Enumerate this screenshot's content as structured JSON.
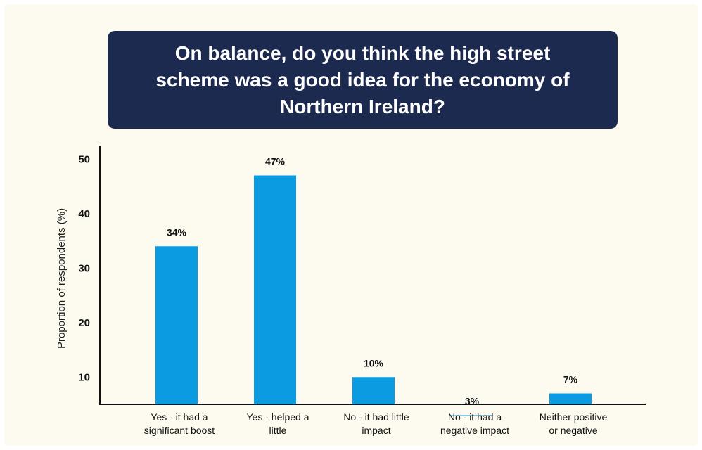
{
  "colors": {
    "background": "#fdfbef",
    "title_box": "#1d2a4f",
    "bar": "#0a9be0"
  },
  "chart_data": {
    "type": "bar",
    "title": "On balance, do you think the high street scheme was a good idea for the economy of Northern Ireland?",
    "xlabel": "",
    "ylabel": "Proportion of respondents (%)",
    "ylim": [
      5,
      52
    ],
    "yticks": [
      10,
      20,
      30,
      40,
      50
    ],
    "grid": false,
    "categories": [
      [
        "Yes - it had a",
        "significant boost"
      ],
      [
        "Yes - helped a",
        "little"
      ],
      [
        "No - it had little",
        "impact"
      ],
      [
        "No - it had a",
        "negative impact"
      ],
      [
        "Neither positive",
        "or negative"
      ]
    ],
    "values": [
      34,
      47,
      10,
      3,
      7
    ],
    "data_labels": [
      "34%",
      "47%",
      "10%",
      "3%",
      "7%"
    ]
  }
}
